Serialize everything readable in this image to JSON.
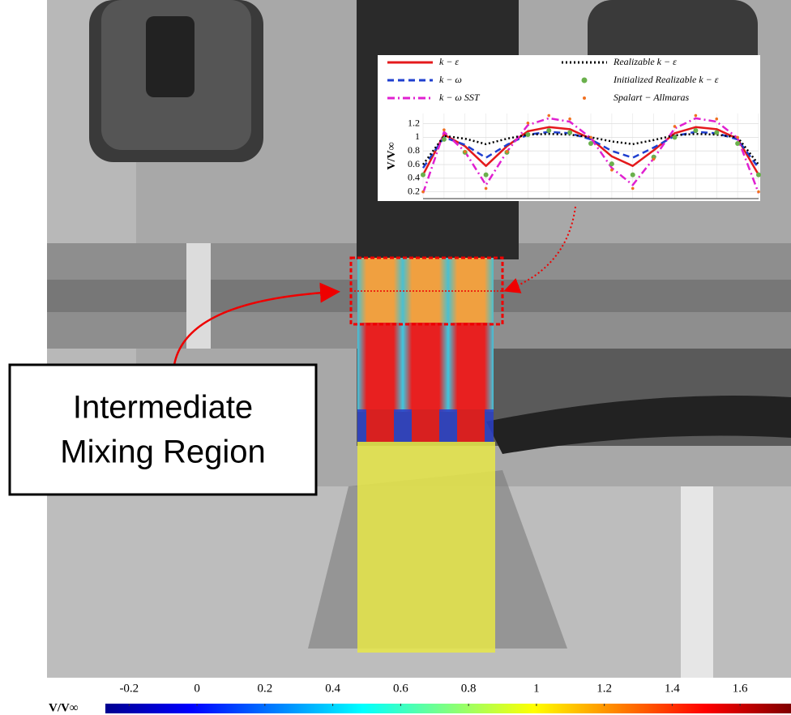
{
  "chart_data": [
    {
      "type": "line",
      "ylabel": "V/V∞",
      "categories": [
        null,
        null,
        null,
        null,
        null,
        null,
        null,
        null,
        null,
        null,
        null,
        null,
        null,
        null,
        null,
        null,
        null
      ],
      "ylim": [
        0.1,
        1.35
      ],
      "yticks": [
        0.2,
        0.4,
        0.6,
        0.8,
        1,
        1.2
      ],
      "grid": true,
      "series": [
        {
          "name": "k − ε",
          "color": "#e41a1c",
          "style": "solid",
          "values": [
            0.45,
            1.04,
            0.87,
            0.58,
            0.87,
            1.09,
            1.15,
            1.12,
            0.98,
            0.72,
            0.58,
            0.81,
            1.06,
            1.15,
            1.12,
            0.98,
            0.45
          ]
        },
        {
          "name": "k − ω",
          "color": "#1f3fcf",
          "style": "dashed",
          "values": [
            0.55,
            1.0,
            0.89,
            0.7,
            0.89,
            1.04,
            1.08,
            1.06,
            0.97,
            0.8,
            0.7,
            0.85,
            1.02,
            1.08,
            1.06,
            0.97,
            0.55
          ]
        },
        {
          "name": "k − ω SST",
          "color": "#e020d0",
          "style": "dashdot",
          "values": [
            0.18,
            1.08,
            0.79,
            0.3,
            0.79,
            1.18,
            1.28,
            1.23,
            0.99,
            0.55,
            0.3,
            0.69,
            1.13,
            1.28,
            1.23,
            0.99,
            0.18
          ]
        },
        {
          "name": "Realizable k − ε",
          "color": "#000000",
          "style": "dotted",
          "values": [
            0.6,
            1.02,
            0.98,
            0.9,
            0.98,
            1.04,
            1.05,
            1.04,
            1.0,
            0.94,
            0.9,
            0.96,
            1.03,
            1.05,
            1.04,
            1.0,
            0.6
          ]
        },
        {
          "name": "Initialized Realizable k − ε",
          "color": "#6ab04c",
          "style": "marker",
          "values": [
            0.45,
            0.97,
            0.78,
            0.45,
            0.78,
            1.04,
            1.1,
            1.07,
            0.91,
            0.61,
            0.45,
            0.71,
            1.0,
            1.1,
            1.07,
            0.91,
            0.45
          ]
        },
        {
          "name": "Spalart − Allmaras",
          "color": "#f07020",
          "style": "smallmarker",
          "values": [
            0.2,
            1.11,
            0.79,
            0.25,
            0.79,
            1.21,
            1.32,
            1.27,
            1.0,
            0.52,
            0.25,
            0.68,
            1.16,
            1.32,
            1.27,
            1.0,
            0.2
          ]
        }
      ]
    },
    {
      "type": "colorbar",
      "label": "V/V∞",
      "xlim": [
        -0.27,
        1.75
      ],
      "xticks": [
        -0.2,
        0,
        0.2,
        0.4,
        0.6,
        0.8,
        1,
        1.2,
        1.4,
        1.6
      ],
      "colors": [
        "#00008f",
        "#0000ff",
        "#0080ff",
        "#00ffff",
        "#80ff80",
        "#ffff00",
        "#ff8000",
        "#ff0000",
        "#800000"
      ]
    }
  ],
  "annotation": {
    "lines": [
      "Intermediate",
      "Mixing Region"
    ]
  }
}
